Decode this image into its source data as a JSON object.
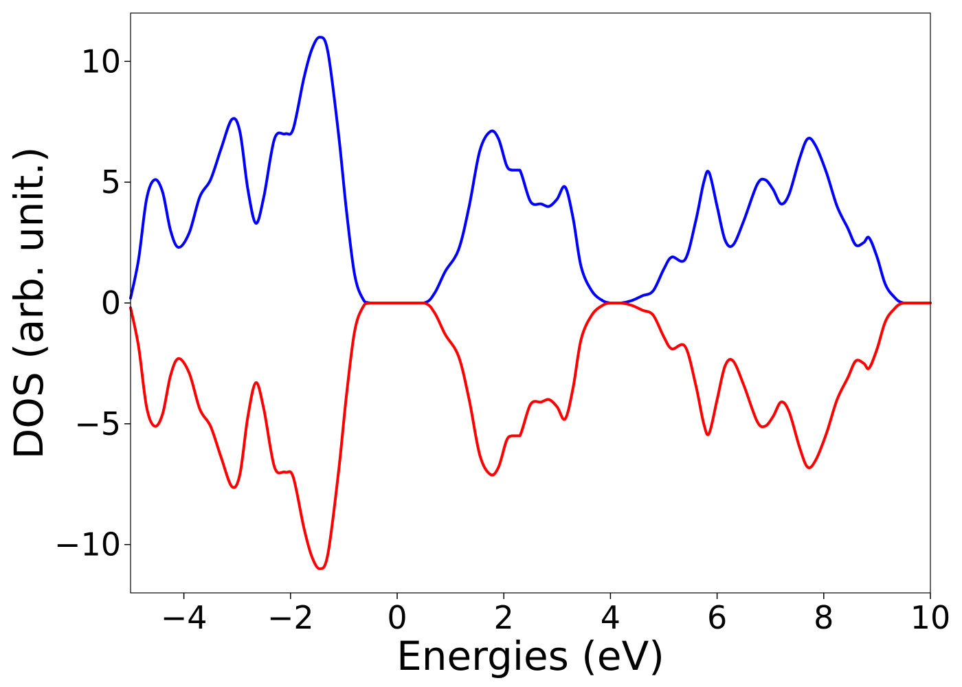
{
  "chart_data": {
    "type": "line",
    "title": "",
    "xlabel": "Energies (eV)",
    "ylabel": "DOS (arb. unit.)",
    "xlim": [
      -5,
      10
    ],
    "ylim": [
      -12,
      12
    ],
    "grid": false,
    "legend": "none",
    "x_ticks": [
      -4,
      -2,
      0,
      2,
      4,
      6,
      8,
      10
    ],
    "x_tick_labels": [
      "−4",
      "−2",
      "0",
      "2",
      "4",
      "6",
      "8",
      "10"
    ],
    "y_ticks": [
      -10,
      -5,
      0,
      5,
      10
    ],
    "y_tick_labels": [
      "−10",
      "−5",
      "0",
      "5",
      "10"
    ],
    "series": [
      {
        "color": "#0000ff",
        "points": [
          [
            -5.0,
            0.2
          ],
          [
            -4.85,
            1.8
          ],
          [
            -4.7,
            4.3
          ],
          [
            -4.55,
            5.1
          ],
          [
            -4.4,
            4.6
          ],
          [
            -4.25,
            3.0
          ],
          [
            -4.1,
            2.3
          ],
          [
            -3.9,
            2.9
          ],
          [
            -3.7,
            4.4
          ],
          [
            -3.5,
            5.1
          ],
          [
            -3.3,
            6.4
          ],
          [
            -3.1,
            7.6
          ],
          [
            -2.95,
            7.1
          ],
          [
            -2.8,
            4.7
          ],
          [
            -2.65,
            3.3
          ],
          [
            -2.5,
            4.4
          ],
          [
            -2.3,
            6.8
          ],
          [
            -2.1,
            7.0
          ],
          [
            -1.95,
            7.2
          ],
          [
            -1.75,
            9.3
          ],
          [
            -1.6,
            10.5
          ],
          [
            -1.45,
            11.0
          ],
          [
            -1.3,
            10.4
          ],
          [
            -1.1,
            7.0
          ],
          [
            -0.95,
            3.8
          ],
          [
            -0.8,
            1.2
          ],
          [
            -0.65,
            0.2
          ],
          [
            -0.5,
            0.0
          ],
          [
            0.0,
            0.0
          ],
          [
            0.5,
            0.0
          ],
          [
            0.7,
            0.4
          ],
          [
            0.9,
            1.3
          ],
          [
            1.15,
            2.2
          ],
          [
            1.35,
            4.0
          ],
          [
            1.55,
            6.3
          ],
          [
            1.75,
            7.1
          ],
          [
            1.9,
            6.8
          ],
          [
            2.05,
            5.7
          ],
          [
            2.15,
            5.5
          ],
          [
            2.3,
            5.5
          ],
          [
            2.5,
            4.2
          ],
          [
            2.7,
            4.1
          ],
          [
            2.85,
            4.0
          ],
          [
            3.0,
            4.3
          ],
          [
            3.15,
            4.8
          ],
          [
            3.3,
            3.5
          ],
          [
            3.45,
            1.5
          ],
          [
            3.65,
            0.5
          ],
          [
            3.85,
            0.1
          ],
          [
            4.0,
            0.0
          ],
          [
            4.2,
            0.0
          ],
          [
            4.4,
            0.1
          ],
          [
            4.6,
            0.3
          ],
          [
            4.8,
            0.5
          ],
          [
            5.0,
            1.4
          ],
          [
            5.15,
            1.9
          ],
          [
            5.4,
            1.8
          ],
          [
            5.6,
            3.4
          ],
          [
            5.75,
            5.0
          ],
          [
            5.85,
            5.4
          ],
          [
            6.0,
            4.0
          ],
          [
            6.15,
            2.6
          ],
          [
            6.3,
            2.4
          ],
          [
            6.5,
            3.4
          ],
          [
            6.75,
            4.9
          ],
          [
            6.9,
            5.1
          ],
          [
            7.05,
            4.7
          ],
          [
            7.2,
            4.1
          ],
          [
            7.35,
            4.5
          ],
          [
            7.55,
            6.0
          ],
          [
            7.7,
            6.8
          ],
          [
            7.85,
            6.5
          ],
          [
            8.05,
            5.4
          ],
          [
            8.25,
            4.0
          ],
          [
            8.45,
            3.1
          ],
          [
            8.6,
            2.4
          ],
          [
            8.75,
            2.5
          ],
          [
            8.85,
            2.7
          ],
          [
            9.0,
            1.9
          ],
          [
            9.15,
            0.8
          ],
          [
            9.3,
            0.3
          ],
          [
            9.5,
            0.0
          ],
          [
            10.0,
            0.0
          ]
        ]
      },
      {
        "color": "#ff0000",
        "points": [
          [
            -5.0,
            -0.2
          ],
          [
            -4.85,
            -1.8
          ],
          [
            -4.7,
            -4.3
          ],
          [
            -4.55,
            -5.1
          ],
          [
            -4.4,
            -4.6
          ],
          [
            -4.25,
            -3.0
          ],
          [
            -4.1,
            -2.3
          ],
          [
            -3.9,
            -2.9
          ],
          [
            -3.7,
            -4.4
          ],
          [
            -3.5,
            -5.1
          ],
          [
            -3.3,
            -6.4
          ],
          [
            -3.1,
            -7.6
          ],
          [
            -2.95,
            -7.1
          ],
          [
            -2.8,
            -4.7
          ],
          [
            -2.65,
            -3.3
          ],
          [
            -2.5,
            -4.4
          ],
          [
            -2.3,
            -6.8
          ],
          [
            -2.1,
            -7.0
          ],
          [
            -1.95,
            -7.2
          ],
          [
            -1.75,
            -9.3
          ],
          [
            -1.6,
            -10.5
          ],
          [
            -1.45,
            -11.0
          ],
          [
            -1.3,
            -10.4
          ],
          [
            -1.1,
            -7.0
          ],
          [
            -0.95,
            -3.8
          ],
          [
            -0.8,
            -1.2
          ],
          [
            -0.65,
            -0.2
          ],
          [
            -0.5,
            0.0
          ],
          [
            0.0,
            0.0
          ],
          [
            0.5,
            0.0
          ],
          [
            0.7,
            -0.4
          ],
          [
            0.9,
            -1.3
          ],
          [
            1.15,
            -2.2
          ],
          [
            1.35,
            -4.0
          ],
          [
            1.55,
            -6.3
          ],
          [
            1.75,
            -7.1
          ],
          [
            1.9,
            -6.8
          ],
          [
            2.05,
            -5.7
          ],
          [
            2.15,
            -5.5
          ],
          [
            2.3,
            -5.5
          ],
          [
            2.5,
            -4.2
          ],
          [
            2.7,
            -4.1
          ],
          [
            2.85,
            -4.0
          ],
          [
            3.0,
            -4.3
          ],
          [
            3.15,
            -4.8
          ],
          [
            3.3,
            -3.5
          ],
          [
            3.45,
            -1.5
          ],
          [
            3.65,
            -0.5
          ],
          [
            3.85,
            -0.1
          ],
          [
            4.0,
            0.0
          ],
          [
            4.2,
            0.0
          ],
          [
            4.4,
            -0.1
          ],
          [
            4.6,
            -0.3
          ],
          [
            4.8,
            -0.5
          ],
          [
            5.0,
            -1.4
          ],
          [
            5.15,
            -1.9
          ],
          [
            5.4,
            -1.8
          ],
          [
            5.6,
            -3.4
          ],
          [
            5.75,
            -5.0
          ],
          [
            5.85,
            -5.4
          ],
          [
            6.0,
            -4.0
          ],
          [
            6.15,
            -2.6
          ],
          [
            6.3,
            -2.4
          ],
          [
            6.5,
            -3.4
          ],
          [
            6.75,
            -4.9
          ],
          [
            6.9,
            -5.1
          ],
          [
            7.05,
            -4.7
          ],
          [
            7.2,
            -4.1
          ],
          [
            7.35,
            -4.5
          ],
          [
            7.55,
            -6.0
          ],
          [
            7.7,
            -6.8
          ],
          [
            7.85,
            -6.5
          ],
          [
            8.05,
            -5.4
          ],
          [
            8.25,
            -4.0
          ],
          [
            8.45,
            -3.1
          ],
          [
            8.6,
            -2.4
          ],
          [
            8.75,
            -2.5
          ],
          [
            8.85,
            -2.7
          ],
          [
            9.0,
            -1.9
          ],
          [
            9.15,
            -0.8
          ],
          [
            9.3,
            -0.3
          ],
          [
            9.5,
            0.0
          ],
          [
            10.0,
            0.0
          ]
        ]
      }
    ]
  }
}
